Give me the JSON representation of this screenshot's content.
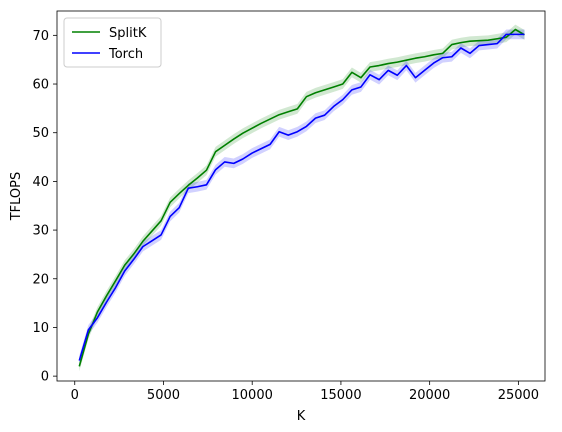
{
  "chart_data": {
    "type": "line",
    "title": "",
    "xlabel": "K",
    "ylabel": "TFLOPS",
    "xlim": [
      -1000,
      26500
    ],
    "ylim": [
      -1,
      75
    ],
    "xticks": [
      0,
      5000,
      10000,
      15000,
      20000,
      25000
    ],
    "yticks": [
      0,
      10,
      20,
      30,
      40,
      50,
      60,
      70
    ],
    "grid": false,
    "legend": "top-left",
    "series": [
      {
        "name": "SplitK",
        "color": "#008000",
        "x": [
          256,
          768,
          1280,
          1792,
          2304,
          2816,
          3328,
          3840,
          4352,
          4864,
          5376,
          5888,
          6400,
          6912,
          7424,
          7936,
          8448,
          8960,
          9472,
          9984,
          10496,
          11008,
          11520,
          12032,
          12544,
          13056,
          13568,
          14080,
          14592,
          15104,
          15616,
          16128,
          16640,
          17152,
          17664,
          18176,
          18688,
          19200,
          19712,
          20224,
          20736,
          21248,
          21760,
          22272,
          22784,
          23296,
          23808,
          24320,
          24832,
          25344
        ],
        "y": [
          2.0,
          8.6,
          13.2,
          16.5,
          19.6,
          22.8,
          25.1,
          27.7,
          29.8,
          31.9,
          35.7,
          37.5,
          39.2,
          40.7,
          42.3,
          46.1,
          47.4,
          48.7,
          49.9,
          50.9,
          51.9,
          52.8,
          53.7,
          54.3,
          54.9,
          57.4,
          58.2,
          58.8,
          59.4,
          60.0,
          62.4,
          61.3,
          63.5,
          63.8,
          64.2,
          64.5,
          64.9,
          65.3,
          65.6,
          66.0,
          66.3,
          68.1,
          68.5,
          68.8,
          68.9,
          69.0,
          69.3,
          69.6,
          71.2,
          70.1
        ],
        "band": 1.0
      },
      {
        "name": "Torch",
        "color": "#0000ff",
        "x": [
          256,
          768,
          1280,
          1792,
          2304,
          2816,
          3328,
          3840,
          4352,
          4864,
          5376,
          5888,
          6400,
          6912,
          7424,
          7936,
          8448,
          8960,
          9472,
          9984,
          10496,
          11008,
          11520,
          12032,
          12544,
          13056,
          13568,
          14080,
          14592,
          15104,
          15616,
          16128,
          16640,
          17152,
          17664,
          18176,
          18688,
          19200,
          19712,
          20224,
          20736,
          21248,
          21760,
          22272,
          22784,
          23296,
          23808,
          24320,
          24832,
          25344
        ],
        "y": [
          3.2,
          9.5,
          12.0,
          15.2,
          18.2,
          21.6,
          24.0,
          26.6,
          27.8,
          29.0,
          32.8,
          34.6,
          38.6,
          38.9,
          39.3,
          42.4,
          44.0,
          43.7,
          44.6,
          45.8,
          46.7,
          47.6,
          50.2,
          49.5,
          50.2,
          51.3,
          53.0,
          53.6,
          55.4,
          56.8,
          58.8,
          59.4,
          61.9,
          60.9,
          62.8,
          61.8,
          63.8,
          61.3,
          62.8,
          64.3,
          65.4,
          65.6,
          67.4,
          66.3,
          67.9,
          68.1,
          68.3,
          70.2,
          70.2,
          70.2
        ],
        "band": 1.0
      }
    ]
  }
}
